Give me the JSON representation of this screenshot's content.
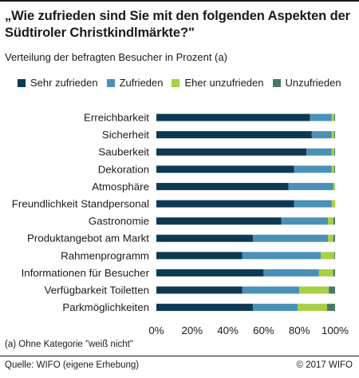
{
  "header": {
    "title": "„Wie zufrieden sind Sie mit den folgenden Aspekten der Südtiroler Christkindlmärkte?\"",
    "subtitle": "Verteilung der befragten Besucher in Prozent (a)"
  },
  "footer": {
    "footnote": "(a) Ohne Kategorie \"weiß nicht\"",
    "source": "Quelle: WIFO (eigene Erhebung)",
    "copyright": "© 2017 WIFO"
  },
  "chart_data": {
    "type": "bar",
    "orientation": "horizontal",
    "stacked": true,
    "title": "„Wie zufrieden sind Sie mit den folgenden Aspekten der Südtiroler Christkindlmärkte?\"",
    "subtitle": "Verteilung der befragten Besucher in Prozent (a)",
    "xlabel": "",
    "ylabel": "",
    "xlim": [
      0,
      100
    ],
    "x_ticks": [
      "0%",
      "20%",
      "40%",
      "60%",
      "80%",
      "100%"
    ],
    "grid": false,
    "legend_position": "top",
    "categories": [
      "Erreichbarkeit",
      "Sicherheit",
      "Sauberkeit",
      "Dekoration",
      "Atmosphäre",
      "Freundlichkeit Standpersonal",
      "Gastronomie",
      "Produktangebot am Markt",
      "Rahmenprogramm",
      "Informationen für Besucher",
      "Verfügbarkeit Toiletten",
      "Parkmöglichkeiten"
    ],
    "series": [
      {
        "name": "Sehr zufrieden",
        "color": "#0d3a52",
        "values": [
          86,
          87,
          84,
          77,
          74,
          77,
          70,
          54,
          48,
          60,
          48,
          54
        ]
      },
      {
        "name": "Zufrieden",
        "color": "#4a91b8",
        "values": [
          12,
          11,
          14,
          21,
          25,
          21,
          26,
          42,
          44,
          31,
          32,
          25
        ]
      },
      {
        "name": "Eher unzufrieden",
        "color": "#a8cf45",
        "values": [
          1.5,
          1.5,
          1.5,
          1.5,
          1,
          2,
          3,
          3,
          7.5,
          8,
          16.5,
          16.5
        ]
      },
      {
        "name": "Unzufrieden",
        "color": "#4a7a65",
        "values": [
          0.5,
          0.5,
          0.5,
          0.5,
          0,
          0,
          1,
          1,
          0.5,
          1,
          3.5,
          4.5
        ]
      }
    ]
  }
}
